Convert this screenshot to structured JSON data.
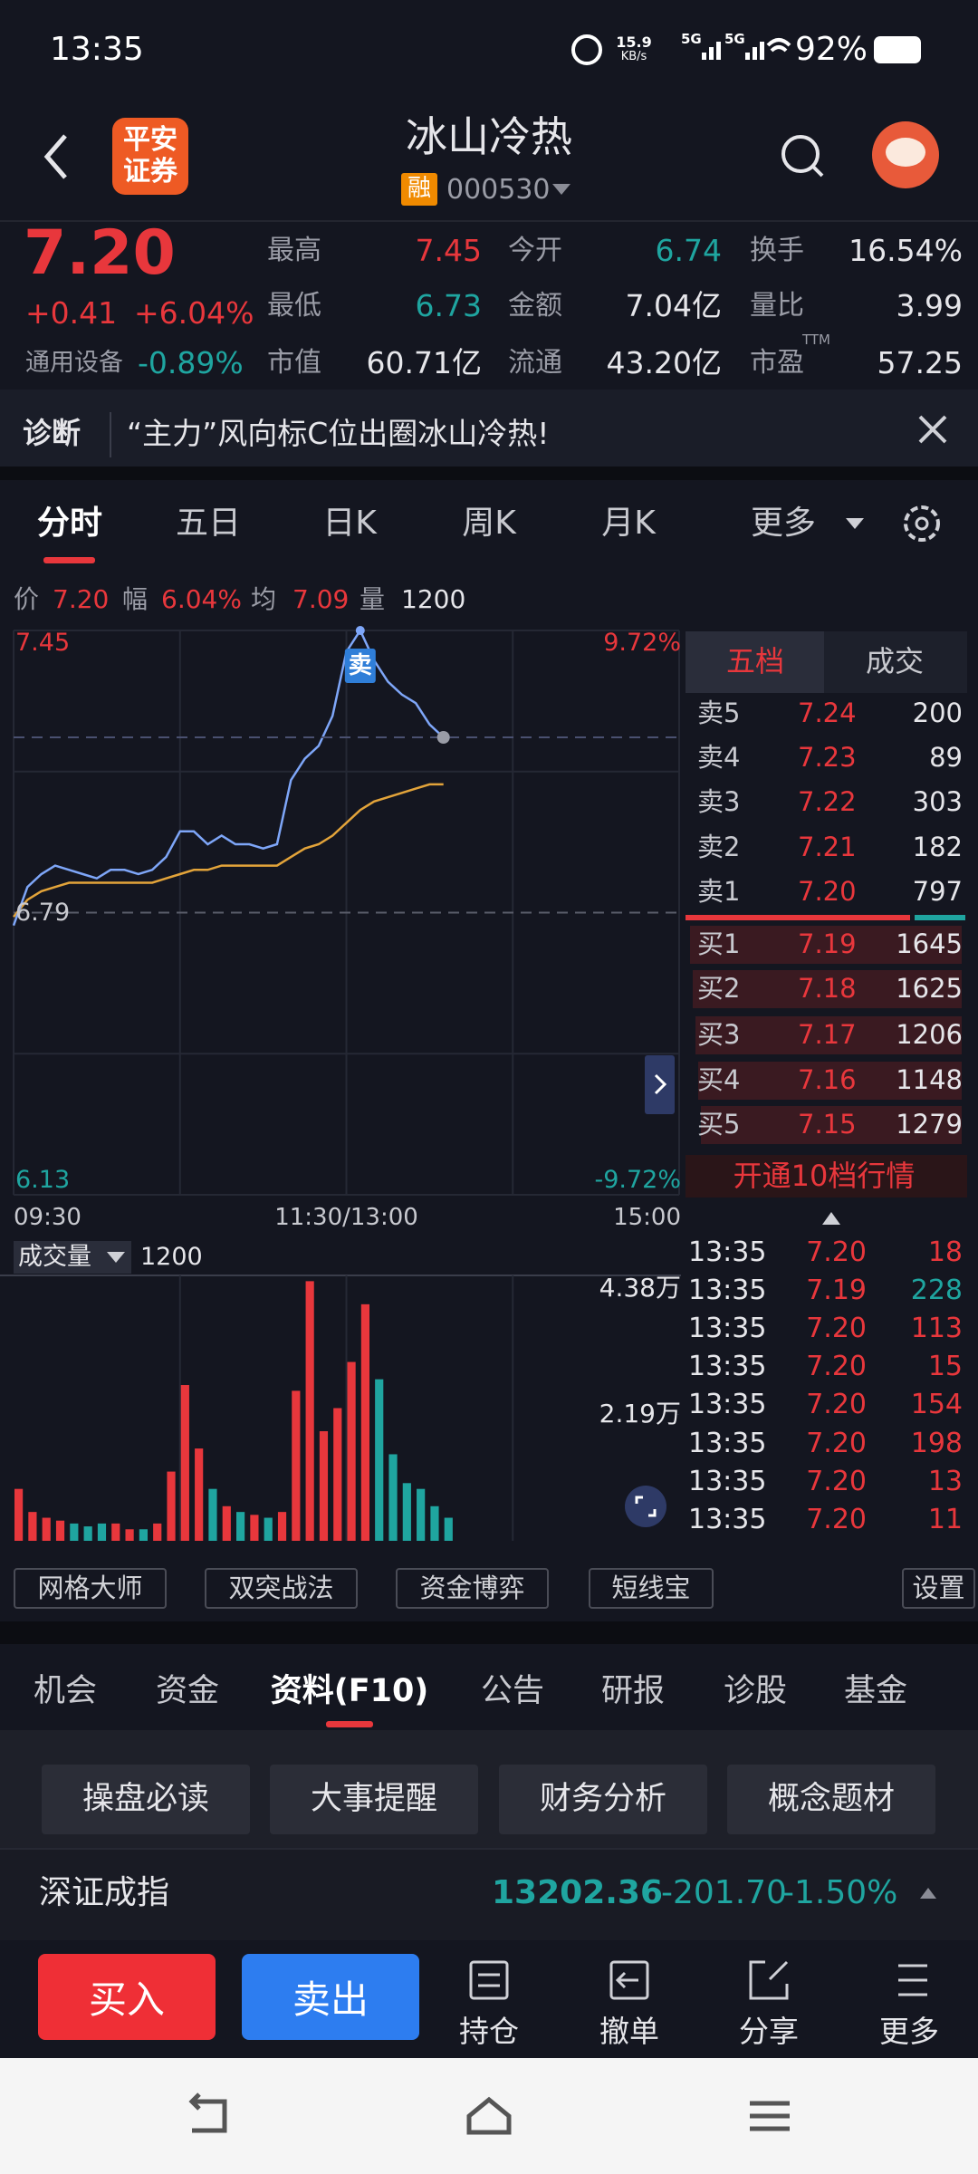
{
  "status_bar": {
    "time": "13:35",
    "speed": "15.9",
    "speed_unit": "KB/s",
    "network": "5G",
    "network2": "5G",
    "battery": "92%"
  },
  "header": {
    "logo": [
      "平安",
      "证券"
    ],
    "title": "冰山冷热",
    "badge": "融",
    "code": "000530"
  },
  "quote": {
    "price": "7.20",
    "change": "+0.41",
    "change_pct": "+6.04%",
    "sector": "通用设备",
    "sector_pct": "-0.89%",
    "stats": [
      [
        {
          "label": "最高",
          "value": "7.45"
        },
        {
          "label": "今开",
          "value": "6.74"
        },
        {
          "label": "换手",
          "value": "16.54%"
        }
      ],
      [
        {
          "label": "最低",
          "value": "6.73"
        },
        {
          "label": "金额",
          "value": "7.04亿"
        },
        {
          "label": "量比",
          "value": "3.99"
        }
      ],
      [
        {
          "label": "市值",
          "value": "60.71亿"
        },
        {
          "label": "流通",
          "value": "43.20亿"
        },
        {
          "label": "市盈",
          "sup": "TTM",
          "value": "57.25"
        }
      ]
    ]
  },
  "diagnosis": {
    "label": "诊断",
    "text": "“主力”风向标C位出圈冰山冷热!"
  },
  "tabs": [
    "分时",
    "五日",
    "日K",
    "周K",
    "月K",
    "更多"
  ],
  "info": {
    "price_label": "价",
    "price": "7.20",
    "range_label": "幅",
    "range": "6.04%",
    "avg_label": "均",
    "avg": "7.09",
    "vol_label": "量",
    "vol": "1200"
  },
  "order_book": {
    "tabs": [
      "五档",
      "成交"
    ],
    "asks": [
      {
        "label": "卖5",
        "price": "7.24",
        "volume": "200"
      },
      {
        "label": "卖4",
        "price": "7.23",
        "volume": "89"
      },
      {
        "label": "卖3",
        "price": "7.22",
        "volume": "303"
      },
      {
        "label": "卖2",
        "price": "7.21",
        "volume": "182"
      },
      {
        "label": "卖1",
        "price": "7.20",
        "volume": "797"
      }
    ],
    "bids": [
      {
        "label": "买1",
        "price": "7.19",
        "volume": "1645"
      },
      {
        "label": "买2",
        "price": "7.18",
        "volume": "1625"
      },
      {
        "label": "买3",
        "price": "7.17",
        "volume": "1206"
      },
      {
        "label": "买4",
        "price": "7.16",
        "volume": "1148"
      },
      {
        "label": "买5",
        "price": "7.15",
        "volume": "1279"
      }
    ],
    "upgrade": "开通10档行情"
  },
  "trades": [
    {
      "time": "13:35",
      "price": "7.20",
      "volume": "18"
    },
    {
      "time": "13:35",
      "price": "7.19",
      "volume": "228"
    },
    {
      "time": "13:35",
      "price": "7.20",
      "volume": "113"
    },
    {
      "time": "13:35",
      "price": "7.20",
      "volume": "15"
    },
    {
      "time": "13:35",
      "price": "7.20",
      "volume": "154"
    },
    {
      "time": "13:35",
      "price": "7.20",
      "volume": "198"
    },
    {
      "time": "13:35",
      "price": "7.20",
      "volume": "13"
    },
    {
      "time": "13:35",
      "price": "7.20",
      "volume": "11"
    }
  ],
  "tools": [
    "网格大师",
    "双突战法",
    "资金博弈",
    "短线宝",
    "设置"
  ],
  "sections": [
    "机会",
    "资金",
    "资料(F10)",
    "公告",
    "研报",
    "诊股",
    "基金"
  ],
  "f10_buttons": [
    "操盘必读",
    "大事提醒",
    "财务分析",
    "概念题材"
  ],
  "index": {
    "name": "深证成指",
    "value": "13202.36",
    "change": "-201.70",
    "change_pct": "-1.50%"
  },
  "actions": {
    "buy": "买入",
    "sell": "卖出",
    "items": [
      "持仓",
      "撤单",
      "分享",
      "更多"
    ]
  },
  "chart_data": [
    {
      "type": "line",
      "ylim": [
        6.13,
        7.45
      ],
      "yticks": [
        6.13,
        6.79,
        7.45
      ],
      "y2lim": [
        -9.72,
        9.72
      ],
      "y2ticks": [
        {
          "value": -9.72,
          "label": "-9.72%"
        },
        {
          "value": 9.72,
          "label": "9.72%"
        }
      ],
      "xticks": [
        "09:30",
        "11:30/13:00",
        "15:00"
      ],
      "annotation": "卖",
      "grid": true,
      "series": [
        {
          "color": "#7ea6f8",
          "values": [
            6.76,
            6.85,
            6.88,
            6.9,
            6.89,
            6.88,
            6.87,
            6.89,
            6.89,
            6.88,
            6.89,
            6.92,
            6.98,
            6.98,
            6.95,
            6.97,
            6.95,
            6.95,
            6.94,
            6.95,
            7.1,
            7.15,
            7.18,
            7.25,
            7.4,
            7.45,
            7.38,
            7.33,
            7.3,
            7.28,
            7.23,
            7.2
          ]
        },
        {
          "color": "#e3a43a",
          "values": [
            6.78,
            6.82,
            6.84,
            6.85,
            6.86,
            6.86,
            6.86,
            6.86,
            6.86,
            6.86,
            6.86,
            6.87,
            6.88,
            6.89,
            6.89,
            6.9,
            6.9,
            6.9,
            6.9,
            6.9,
            6.92,
            6.94,
            6.95,
            6.97,
            7.0,
            7.03,
            7.05,
            7.06,
            7.07,
            7.08,
            7.09,
            7.09
          ]
        }
      ]
    },
    {
      "type": "bar",
      "label": "成交量",
      "current": "1200",
      "ylim": [
        0,
        4.6
      ],
      "yticks": [
        {
          "value": 2.19,
          "label": "2.19万"
        },
        {
          "value": 4.38,
          "label": "4.38万"
        }
      ],
      "colors": {
        "up": "#e8373c",
        "down": "#1fa5a0"
      },
      "values": [
        0.9,
        0.5,
        0.4,
        0.35,
        0.3,
        0.25,
        0.3,
        0.3,
        0.2,
        0.2,
        0.3,
        1.2,
        2.7,
        1.6,
        0.9,
        0.6,
        0.5,
        0.45,
        0.4,
        0.5,
        2.6,
        4.5,
        1.9,
        2.3,
        3.1,
        4.1,
        2.8,
        1.5,
        1.0,
        0.9,
        0.6,
        0.4
      ]
    }
  ]
}
